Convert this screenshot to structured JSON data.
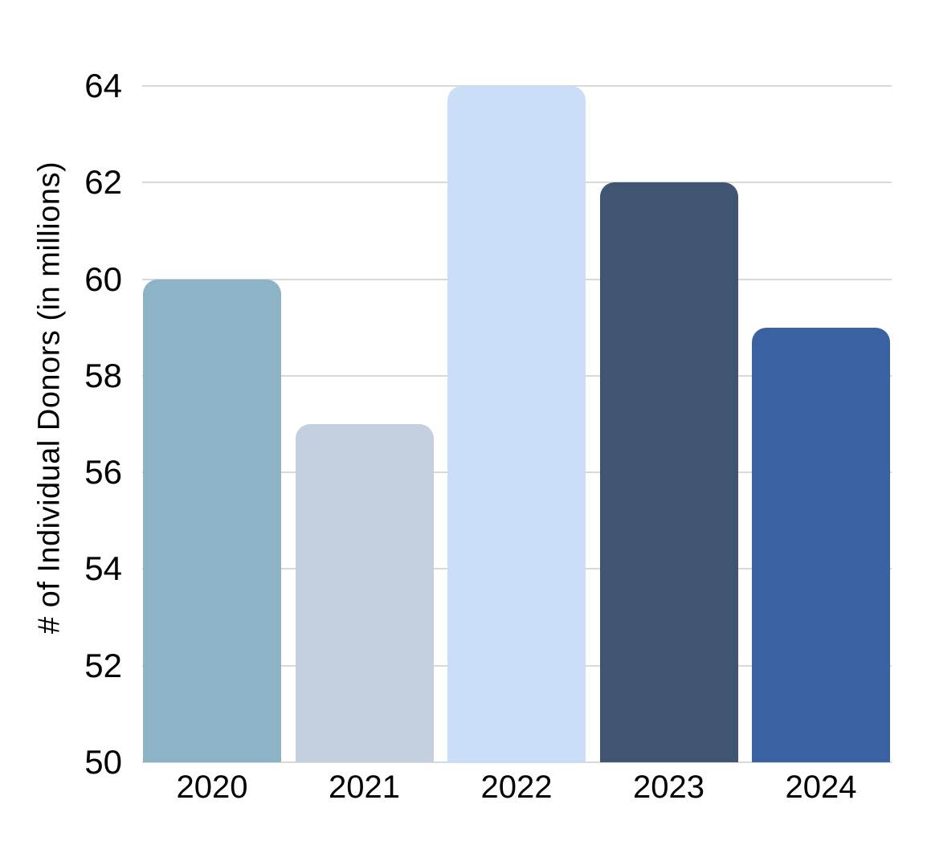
{
  "chart_data": {
    "type": "bar",
    "title": "",
    "categories": [
      "2020",
      "2021",
      "2022",
      "2023",
      "2024"
    ],
    "values": [
      60,
      57,
      64,
      62,
      59
    ],
    "bar_colors": [
      "#8db3c7",
      "#c4d0e0",
      "#cbdef7",
      "#3f5572",
      "#3b62a0"
    ],
    "xlabel": "",
    "ylabel": "# of Individual Donors (in millions)",
    "ylim": [
      50,
      64
    ],
    "yticks": [
      50,
      52,
      54,
      56,
      58,
      60,
      62,
      64
    ],
    "grid": "horizontal",
    "legend_position": "none",
    "colors": {
      "background": "#ffffff",
      "gridline": "#d9d9d9",
      "text": "#000000"
    }
  }
}
